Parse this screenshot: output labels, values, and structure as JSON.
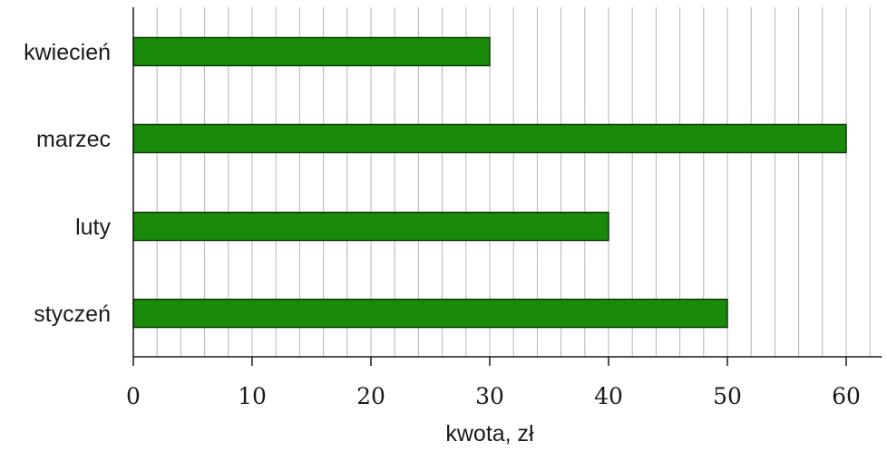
{
  "chart_data": {
    "type": "bar",
    "orientation": "horizontal",
    "categories": [
      "kwiecień",
      "marzec",
      "luty",
      "styczeń"
    ],
    "values": [
      30,
      60,
      40,
      50
    ],
    "title": "",
    "xlabel": "kwota, zł",
    "ylabel": "",
    "xlim": [
      0,
      63
    ],
    "xticks": [
      0,
      10,
      20,
      30,
      40,
      50,
      60
    ],
    "minor_grid_step": 2,
    "grid": true,
    "legend": "none",
    "bar_color": "#1a8a0a",
    "bar_edge_color": "#0d3d08",
    "grid_color": "#b5b5b5",
    "axis_color": "#1a1a1a"
  }
}
